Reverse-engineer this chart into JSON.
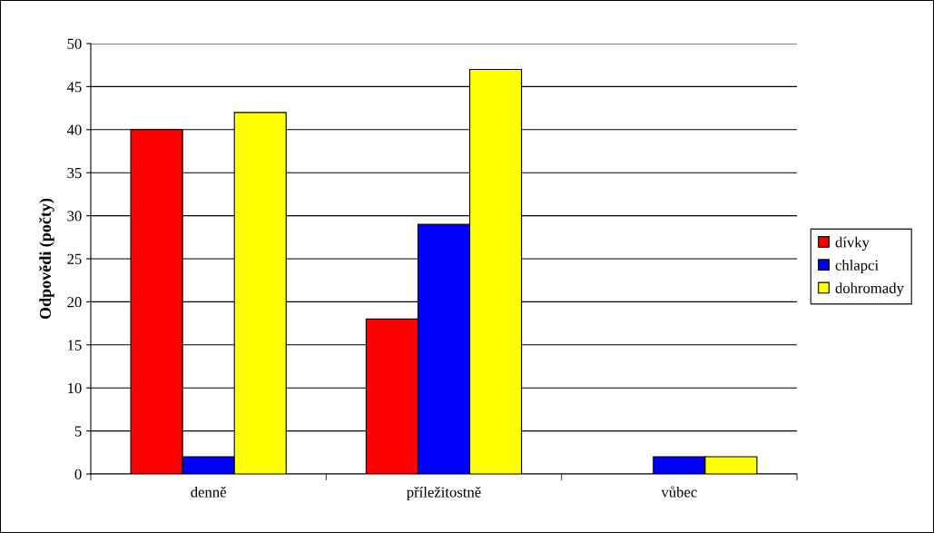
{
  "chart_data": {
    "type": "bar",
    "ylabel": "Odpovědi (počty)",
    "categories": [
      "denně",
      "příležitostně",
      "vůbec"
    ],
    "series": [
      {
        "name": "dívky",
        "color": "#ff0000",
        "values": [
          40,
          18,
          0
        ]
      },
      {
        "name": "chlapci",
        "color": "#0000ff",
        "values": [
          2,
          29,
          2
        ]
      },
      {
        "name": "dohromady",
        "color": "#ffff00",
        "values": [
          42,
          47,
          2
        ]
      }
    ],
    "ylim": [
      0,
      50
    ],
    "yticks": [
      0,
      5,
      10,
      15,
      20,
      25,
      30,
      35,
      40,
      45,
      50
    ],
    "grid": "y",
    "legend": "right"
  }
}
